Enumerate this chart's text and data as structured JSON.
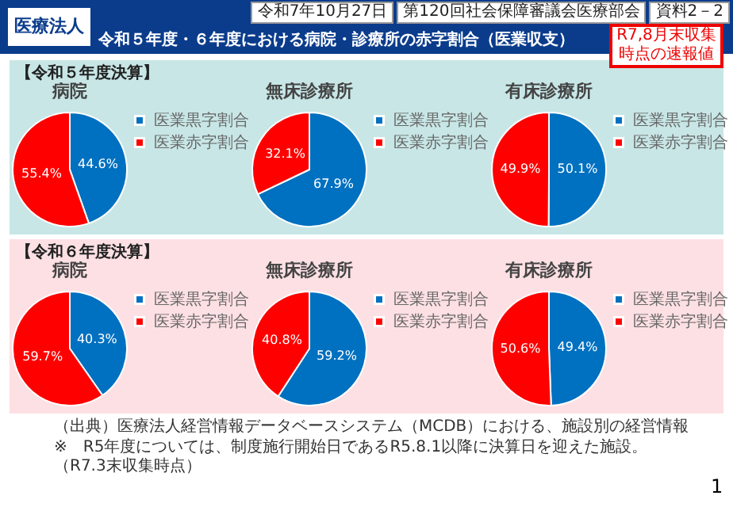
{
  "chart_data": [
    {
      "type": "other",
      "title": "令和５年度・６年度における病院・診療所の赤字割合（医業収支）",
      "annotations": [
        "医療法人",
        "令和7年10月27日",
        "第120回社会保障審議会医療部会",
        "資料2－2",
        "R7,8月末収集",
        "時点の速報値",
        "（出典）医療法人経営情報データベースシステム（MCDB）における、施設別の経営情報",
        "※　R5年度については、制度施行開始日であるR5.8.1以降に決算日を迎えた施設。（R7.3末収集時点）",
        "1"
      ]
    },
    {
      "type": "pie",
      "subtitle": "【令和５年度決算】",
      "title": "病院",
      "categories": [
        "医業黒字割合",
        "医業赤字割合"
      ],
      "values": [
        44.6,
        55.4
      ],
      "colors": [
        "#0070c0",
        "#ff0000"
      ],
      "value_labels": [
        "44.6%",
        "55.4%"
      ],
      "legend": "top right"
    },
    {
      "type": "pie",
      "title": "無床診療所",
      "categories": [
        "医業黒字割合",
        "医業赤字割合"
      ],
      "values": [
        67.9,
        32.1
      ],
      "colors": [
        "#0070c0",
        "#ff0000"
      ],
      "value_labels": [
        "67.9%",
        "32.1%"
      ],
      "legend": "top right"
    },
    {
      "type": "pie",
      "title": "有床診療所",
      "categories": [
        "医業黒字割合",
        "医業赤字割合"
      ],
      "values": [
        50.1,
        49.9
      ],
      "colors": [
        "#0070c0",
        "#ff0000"
      ],
      "value_labels": [
        "50.1%",
        "49.9%"
      ],
      "legend": "top right"
    },
    {
      "type": "pie",
      "subtitle": "【令和６年度決算】",
      "title": "病院",
      "categories": [
        "医業黒字割合",
        "医業赤字割合"
      ],
      "values": [
        40.3,
        59.7
      ],
      "colors": [
        "#0070c0",
        "#ff0000"
      ],
      "value_labels": [
        "40.3%",
        "59.7%"
      ],
      "legend": "top right"
    },
    {
      "type": "pie",
      "title": "無床診療所",
      "categories": [
        "医業黒字割合",
        "医業赤字割合"
      ],
      "values": [
        59.2,
        40.8
      ],
      "colors": [
        "#0070c0",
        "#ff0000"
      ],
      "value_labels": [
        "59.2%",
        "40.8%"
      ],
      "legend": "top right"
    },
    {
      "type": "pie",
      "title": "有床診療所",
      "categories": [
        "医業黒字割合",
        "医業赤字割合"
      ],
      "values": [
        49.4,
        50.6
      ],
      "colors": [
        "#0070c0",
        "#ff0000"
      ],
      "value_labels": [
        "49.4%",
        "50.6%"
      ],
      "legend": "top right"
    }
  ]
}
